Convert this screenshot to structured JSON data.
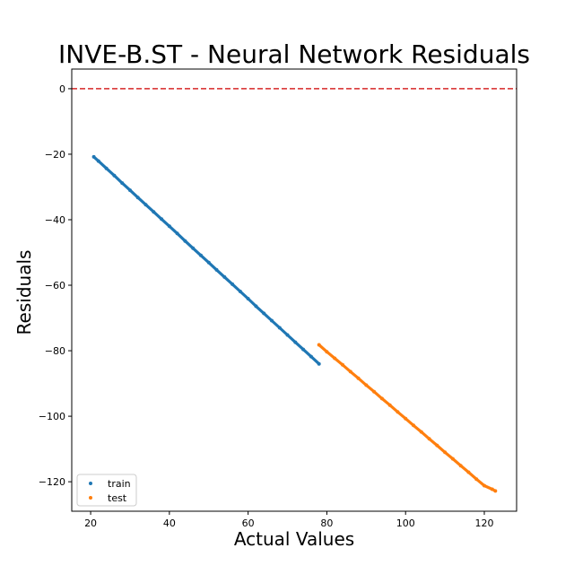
{
  "chart_data": {
    "type": "scatter",
    "title": "INVE-B.ST - Neural Network Residuals",
    "xlabel": "Actual Values",
    "ylabel": "Residuals",
    "xlim": [
      15.2,
      128.2
    ],
    "ylim": [
      -129,
      6
    ],
    "xticks": [
      20,
      40,
      60,
      80,
      100,
      120
    ],
    "yticks": [
      0,
      -20,
      -40,
      -60,
      -80,
      -100,
      -120
    ],
    "grid": false,
    "legend_position": "lower-left",
    "reference_line": {
      "y": 0,
      "color": "#d62728",
      "style": "dashed"
    },
    "series": [
      {
        "name": "train",
        "color": "#1f77b4",
        "x": [
          20.8,
          22,
          24,
          26,
          28,
          30,
          32,
          34,
          36,
          38,
          40,
          42,
          44,
          46,
          48,
          50,
          52,
          54,
          56,
          58,
          60,
          62,
          64,
          66,
          68,
          70,
          72,
          74,
          76,
          78
        ],
        "y": [
          -20.8,
          -22.1,
          -24.3,
          -26.5,
          -28.8,
          -31.0,
          -33.2,
          -35.4,
          -37.6,
          -39.8,
          -42.0,
          -44.2,
          -46.5,
          -48.7,
          -50.9,
          -53.1,
          -55.3,
          -57.5,
          -59.7,
          -61.9,
          -64.1,
          -66.4,
          -68.6,
          -70.8,
          -73.0,
          -75.2,
          -77.4,
          -79.6,
          -81.8,
          -84.0
        ]
      },
      {
        "name": "test",
        "color": "#ff7f0e",
        "x": [
          78,
          80,
          82,
          84,
          86,
          88,
          90,
          92,
          94,
          96,
          98,
          100,
          102,
          104,
          106,
          108,
          110,
          112,
          114,
          116,
          118,
          120,
          122,
          122.8
        ],
        "y": [
          -78.2,
          -80.3,
          -82.3,
          -84.3,
          -86.4,
          -88.4,
          -90.5,
          -92.5,
          -94.6,
          -96.6,
          -98.7,
          -100.7,
          -102.8,
          -104.8,
          -106.9,
          -108.9,
          -111.0,
          -113.0,
          -115.1,
          -117.1,
          -119.2,
          -121.2,
          -122.3,
          -122.8
        ]
      }
    ]
  }
}
